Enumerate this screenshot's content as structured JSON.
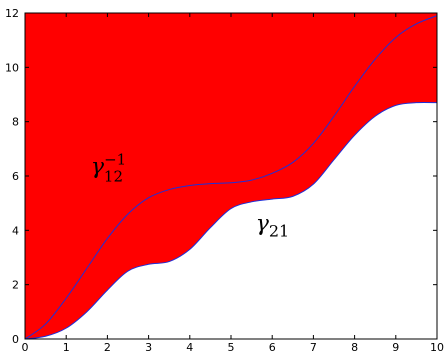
{
  "chart_data": {
    "type": "area",
    "xlim": [
      0,
      10
    ],
    "ylim": [
      0,
      12
    ],
    "xticks": [
      "0",
      "1",
      "2",
      "3",
      "4",
      "5",
      "6",
      "7",
      "8",
      "9",
      "10"
    ],
    "yticks": [
      "0",
      "2",
      "4",
      "6",
      "8",
      "10",
      "12"
    ],
    "grid": false,
    "fill_color": "#ff0000",
    "line_color": "#1f2fd8",
    "series": [
      {
        "x": [
          0,
          0.5,
          1,
          1.5,
          2,
          2.5,
          3,
          3.5,
          4,
          4.5,
          5,
          5.5,
          6,
          6.5,
          7,
          7.5,
          8,
          8.5,
          9,
          9.5,
          10
        ],
        "values": [
          0,
          0.55,
          1.5,
          2.6,
          3.7,
          4.6,
          5.2,
          5.5,
          5.65,
          5.72,
          5.75,
          5.85,
          6.1,
          6.5,
          7.2,
          8.2,
          9.3,
          10.3,
          11.1,
          11.6,
          11.9
        ]
      },
      {
        "x": [
          0,
          0.5,
          1,
          1.5,
          2,
          2.5,
          3,
          3.5,
          4,
          4.5,
          5,
          5.5,
          6,
          6.5,
          7,
          7.5,
          8,
          8.5,
          9,
          9.5,
          10
        ],
        "values": [
          0,
          0.1,
          0.4,
          1.0,
          1.8,
          2.5,
          2.75,
          2.85,
          3.3,
          4.1,
          4.8,
          5.05,
          5.15,
          5.25,
          5.7,
          6.6,
          7.5,
          8.2,
          8.6,
          8.7,
          8.7
        ]
      }
    ],
    "annotations": [
      {
        "label": "γ",
        "sub": "12",
        "sup": "−1",
        "x": 1.6,
        "y": 6.1
      },
      {
        "label": "γ",
        "sub": "21",
        "x": 5.6,
        "y": 4.0
      }
    ]
  }
}
